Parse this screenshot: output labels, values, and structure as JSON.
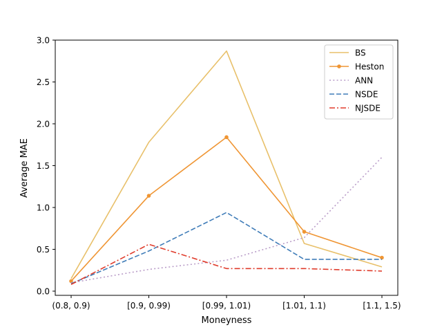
{
  "chart_data": {
    "type": "line",
    "title": "",
    "xlabel": "Moneyness",
    "ylabel": "Average MAE",
    "categories": [
      "(0.8, 0.9)",
      "[0.9, 0.99)",
      "[0.99, 1.01)",
      "[1.01, 1.1)",
      "[1.1, 1.5)"
    ],
    "ylim": [
      -0.05,
      3.0
    ],
    "yticks": [
      0.0,
      0.5,
      1.0,
      1.5,
      2.0,
      2.5,
      3.0
    ],
    "ytick_labels": [
      "0.0",
      "0.5",
      "1.0",
      "1.5",
      "2.0",
      "2.5",
      "3.0"
    ],
    "grid": false,
    "legend_position": "top-right",
    "series": [
      {
        "name": "BS",
        "color": "#e8c06a",
        "style": "solid",
        "marker": "none",
        "values": [
          0.15,
          1.78,
          2.87,
          0.57,
          0.29
        ]
      },
      {
        "name": "Heston",
        "color": "#ef9533",
        "style": "solid",
        "marker": "dot",
        "values": [
          0.12,
          1.14,
          1.84,
          0.71,
          0.4
        ]
      },
      {
        "name": "ANN",
        "color": "#b99cc8",
        "style": "dotted",
        "marker": "none",
        "values": [
          0.1,
          0.26,
          0.37,
          0.64,
          1.6
        ]
      },
      {
        "name": "NSDE",
        "color": "#3f7cb8",
        "style": "dashed",
        "marker": "none",
        "values": [
          0.09,
          0.48,
          0.94,
          0.38,
          0.38
        ]
      },
      {
        "name": "NJSDE",
        "color": "#e03c2c",
        "style": "dashdot",
        "marker": "none",
        "values": [
          0.08,
          0.56,
          0.27,
          0.27,
          0.24
        ]
      }
    ]
  }
}
